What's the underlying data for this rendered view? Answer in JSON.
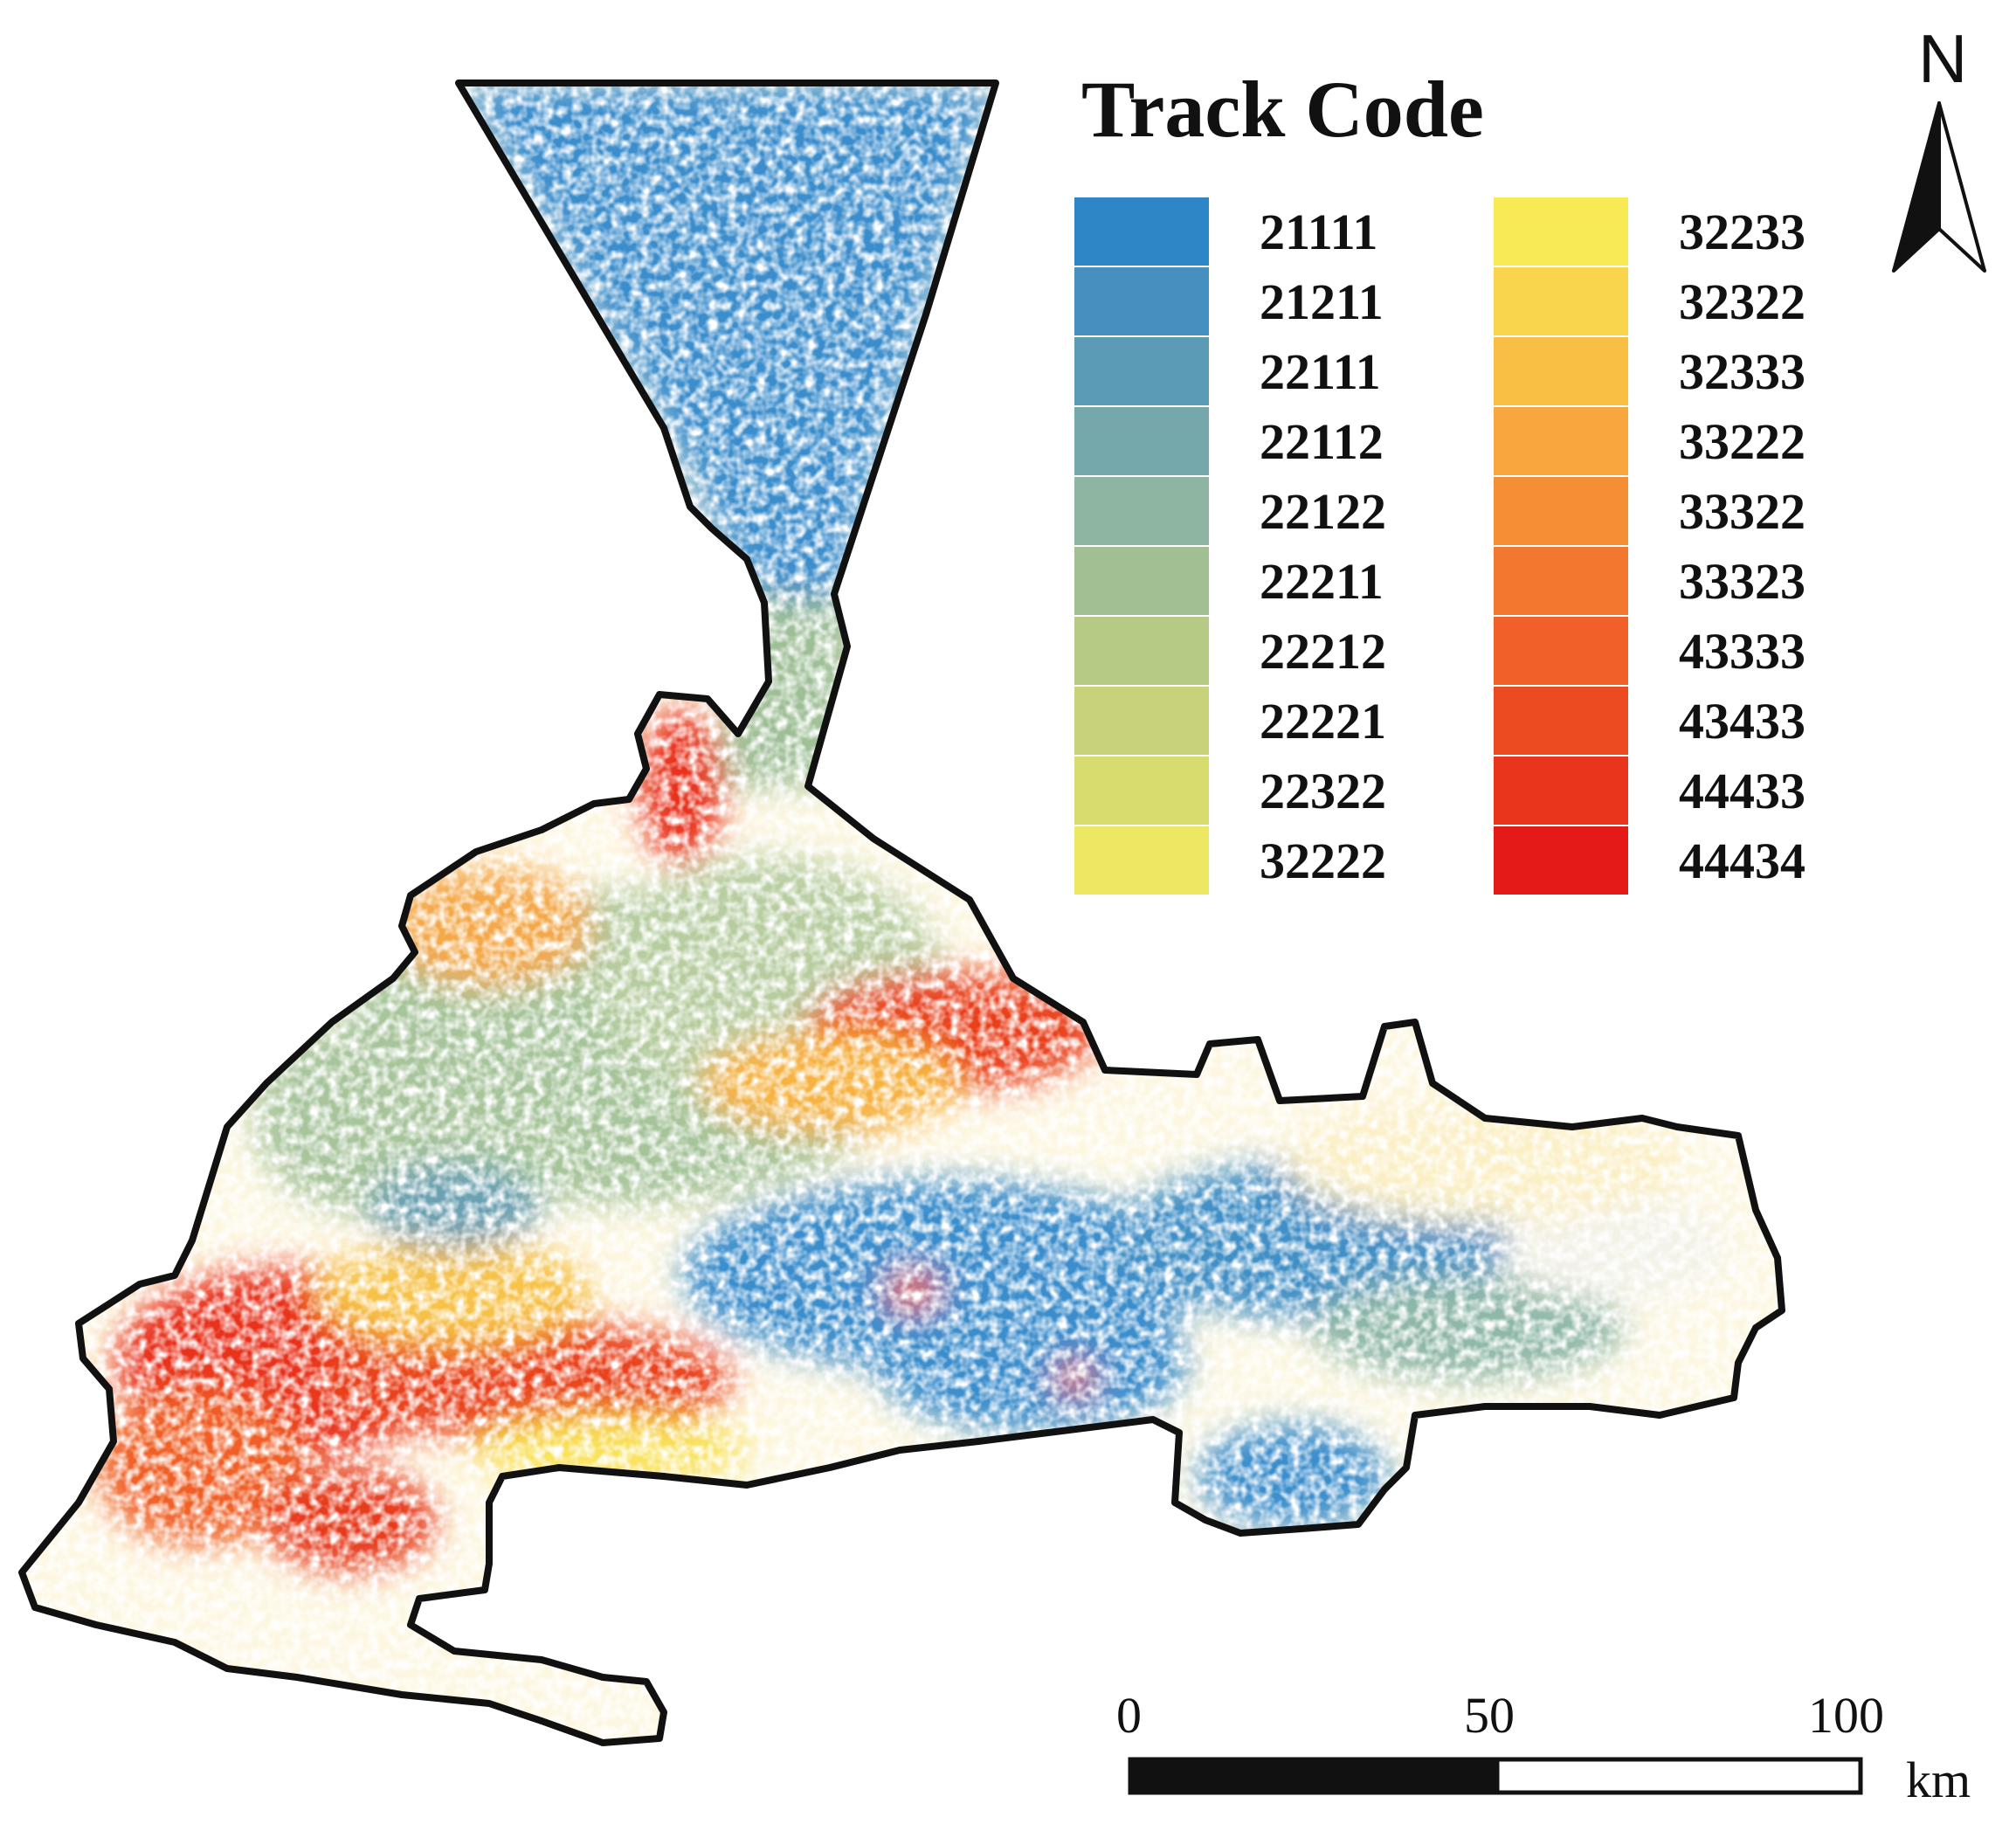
{
  "legend": {
    "title": "Track Code",
    "left_column": [
      {
        "code": "21111",
        "color": "#2f86c6"
      },
      {
        "code": "21211",
        "color": "#4690bf"
      },
      {
        "code": "22111",
        "color": "#5c9bb5"
      },
      {
        "code": "22112",
        "color": "#75a8ab"
      },
      {
        "code": "22122",
        "color": "#8eb5a2"
      },
      {
        "code": "22211",
        "color": "#a2bf93"
      },
      {
        "code": "22212",
        "color": "#b6c985"
      },
      {
        "code": "22221",
        "color": "#c7d27a"
      },
      {
        "code": "22322",
        "color": "#d8dc6e"
      },
      {
        "code": "32222",
        "color": "#ece862"
      }
    ],
    "right_column": [
      {
        "code": "32233",
        "color": "#f8ea55"
      },
      {
        "code": "32322",
        "color": "#f9d54d"
      },
      {
        "code": "32333",
        "color": "#f9bf45"
      },
      {
        "code": "33222",
        "color": "#f8a73e"
      },
      {
        "code": "33322",
        "color": "#f58f36"
      },
      {
        "code": "33323",
        "color": "#f3782f"
      },
      {
        "code": "43333",
        "color": "#f06028"
      },
      {
        "code": "43433",
        "color": "#ec4a21"
      },
      {
        "code": "44433",
        "color": "#e8351b"
      },
      {
        "code": "44434",
        "color": "#e31a17"
      }
    ]
  },
  "north_arrow": {
    "label": "N",
    "icon": "north-arrow-icon"
  },
  "scale_bar": {
    "labels": [
      "0",
      "50",
      "100"
    ],
    "unit": "km"
  }
}
